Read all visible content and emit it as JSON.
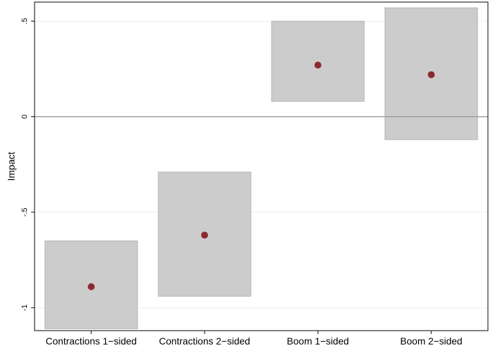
{
  "chart_data": {
    "type": "scatter",
    "ylabel": "Impact",
    "ylim": [
      -1.12,
      0.6
    ],
    "yticks": [
      {
        "value": 0.5,
        "label": ".5"
      },
      {
        "value": 0,
        "label": "0"
      },
      {
        "value": -0.5,
        "label": "-.5"
      },
      {
        "value": -1,
        "label": "-1"
      }
    ],
    "categories": [
      "Contractions 1−sided",
      "Contractions 2−sided",
      "Boom 1−sided",
      "Boom 2−sided"
    ],
    "points": [
      {
        "category": "Contractions 1−sided",
        "estimate": -0.89,
        "ci_low": -1.11,
        "ci_high": -0.65
      },
      {
        "category": "Contractions 2−sided",
        "estimate": -0.62,
        "ci_low": -0.94,
        "ci_high": -0.29
      },
      {
        "category": "Boom 1−sided",
        "estimate": 0.27,
        "ci_low": 0.08,
        "ci_high": 0.5
      },
      {
        "category": "Boom 2−sided",
        "estimate": 0.22,
        "ci_low": -0.12,
        "ci_high": 0.57
      }
    ],
    "reference_line": 0,
    "grid": true,
    "colors": {
      "marker": "#8b2a2e",
      "interval": "#cccccc",
      "interval_border": "#b5b5b5",
      "grid": "#eaf0f3",
      "reference": "#9a9a9a"
    }
  }
}
